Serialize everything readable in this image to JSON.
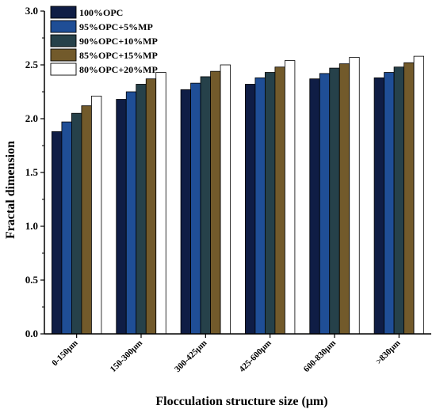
{
  "chart_data": {
    "type": "bar",
    "title": "",
    "xlabel": "Flocculation structure size (μm)",
    "ylabel": "Fractal dimension",
    "ylim": [
      0.0,
      3.0
    ],
    "yticks": [
      "0.0",
      "0.5",
      "1.0",
      "1.5",
      "2.0",
      "2.5",
      "3.0"
    ],
    "grid": false,
    "legend_position": "top-left",
    "categories": [
      "0-150μm",
      "150-300μm",
      "300-425μm",
      "425-600μm",
      "600-830μm",
      ">830μm"
    ],
    "series": [
      {
        "name": "100%OPC",
        "color": "#0f1d45",
        "values": [
          1.88,
          2.18,
          2.27,
          2.32,
          2.37,
          2.38
        ]
      },
      {
        "name": "95%OPC+5%MP",
        "color": "#1f4e96",
        "values": [
          1.97,
          2.25,
          2.33,
          2.38,
          2.42,
          2.43
        ]
      },
      {
        "name": "90%OPC+10%MP",
        "color": "#26414a",
        "values": [
          2.05,
          2.32,
          2.39,
          2.43,
          2.47,
          2.48
        ]
      },
      {
        "name": "85%OPC+15%MP",
        "color": "#725a2b",
        "values": [
          2.12,
          2.37,
          2.44,
          2.48,
          2.51,
          2.52
        ]
      },
      {
        "name": "80%OPC+20%MP",
        "color": "#ffffff",
        "values": [
          2.21,
          2.43,
          2.5,
          2.54,
          2.57,
          2.58
        ]
      }
    ]
  }
}
